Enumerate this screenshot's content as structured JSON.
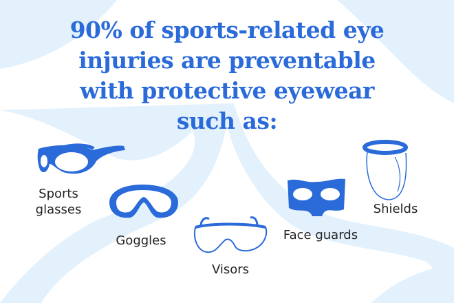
{
  "colors": {
    "accent": "#2a6ad9",
    "background": "#ffffff",
    "swoosh": "#e3f1fc",
    "label": "#222222"
  },
  "title": {
    "lines": [
      "90% of sports-related eye",
      "injuries are preventable",
      "with protective eyewear",
      "such as:"
    ]
  },
  "items": [
    {
      "label_lines": [
        "Sports",
        "glasses"
      ],
      "icon": "sports-glasses-icon"
    },
    {
      "label_lines": [
        "Goggles"
      ],
      "icon": "goggles-icon"
    },
    {
      "label_lines": [
        "Visors"
      ],
      "icon": "visor-icon"
    },
    {
      "label_lines": [
        "Face guards"
      ],
      "icon": "face-guard-icon"
    },
    {
      "label_lines": [
        "Shields"
      ],
      "icon": "face-shield-icon"
    }
  ]
}
